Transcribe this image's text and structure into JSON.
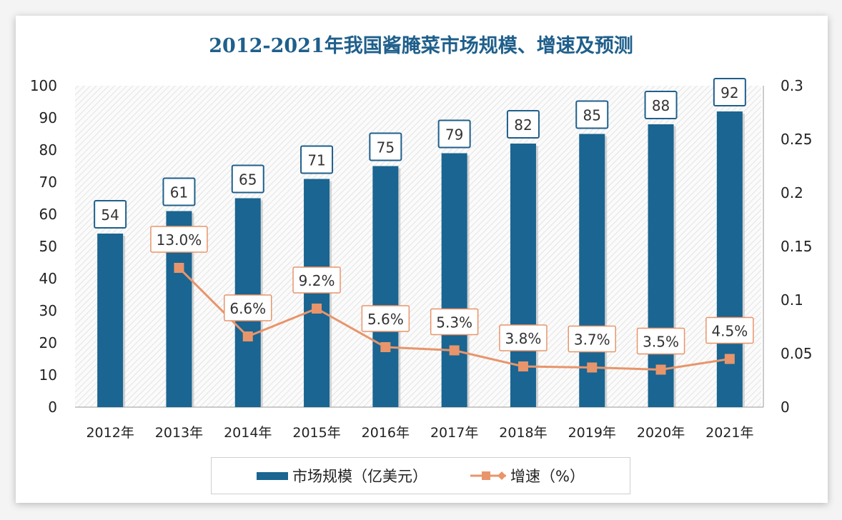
{
  "chart_data": {
    "type": "bar+line",
    "title": "2012-2021年我国酱腌菜市场规模、增速及预测",
    "categories": [
      "2012年",
      "2013年",
      "2014年",
      "2015年",
      "2016年",
      "2017年",
      "2018年",
      "2019年",
      "2020年",
      "2021年"
    ],
    "series": [
      {
        "name": "市场规模（亿美元）",
        "type": "bar",
        "axis": "left",
        "color": "#1a6591",
        "values": [
          54,
          61,
          65,
          71,
          75,
          79,
          82,
          85,
          88,
          92
        ],
        "labels": [
          "54",
          "61",
          "65",
          "71",
          "75",
          "79",
          "82",
          "85",
          "88",
          "92"
        ]
      },
      {
        "name": "增速（%）",
        "type": "line",
        "axis": "right",
        "color": "#e8956b",
        "values": [
          null,
          0.13,
          0.066,
          0.092,
          0.056,
          0.053,
          0.038,
          0.037,
          0.035,
          0.045
        ],
        "labels": [
          "",
          "13.0%",
          "6.6%",
          "9.2%",
          "5.6%",
          "5.3%",
          "3.8%",
          "3.7%",
          "3.5%",
          "4.5%"
        ]
      }
    ],
    "left_axis": {
      "ylim": [
        0,
        100
      ],
      "ticks": [
        "0",
        "10",
        "20",
        "30",
        "40",
        "50",
        "60",
        "70",
        "80",
        "90",
        "100"
      ]
    },
    "right_axis": {
      "ylim": [
        0,
        0.3
      ],
      "ticks": [
        "0",
        "0.05",
        "0.1",
        "0.15",
        "0.2",
        "0.25",
        "0.3"
      ]
    },
    "legend": "bottom",
    "grid": false
  }
}
